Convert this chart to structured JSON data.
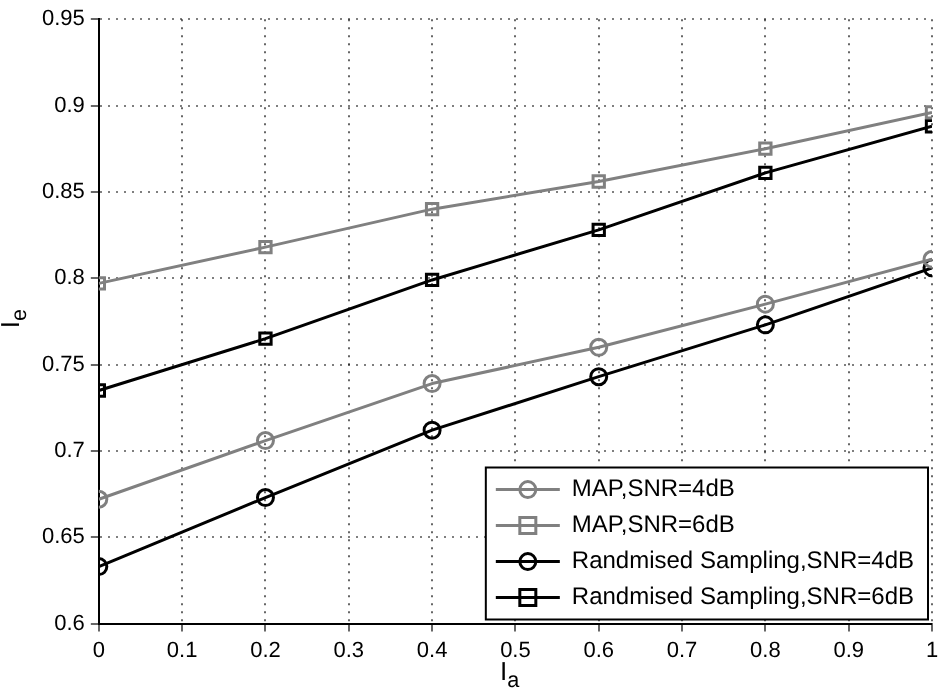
{
  "chart_data": {
    "type": "line",
    "xlabel": "I$_{a}$",
    "ylabel": "I$_{e}$",
    "x": [
      0,
      0.2,
      0.4,
      0.6,
      0.8,
      1
    ],
    "series": [
      {
        "name": "MAP,SNR=4dB",
        "color": "#808080",
        "marker": "circle",
        "values": [
          0.672,
          0.706,
          0.739,
          0.76,
          0.785,
          0.811
        ]
      },
      {
        "name": "MAP,SNR=6dB",
        "color": "#808080",
        "marker": "square",
        "values": [
          0.797,
          0.818,
          0.84,
          0.856,
          0.875,
          0.896
        ]
      },
      {
        "name": "Randmised Sampling,SNR=4dB",
        "color": "#000000",
        "marker": "circle",
        "values": [
          0.633,
          0.673,
          0.712,
          0.743,
          0.773,
          0.806
        ]
      },
      {
        "name": "Randmised Sampling,SNR=6dB",
        "color": "#000000",
        "marker": "square",
        "values": [
          0.735,
          0.765,
          0.799,
          0.828,
          0.861,
          0.888
        ]
      }
    ],
    "xlim": [
      0,
      1
    ],
    "xticks": [
      0,
      0.1,
      0.2,
      0.3,
      0.4,
      0.5,
      0.6,
      0.7,
      0.8,
      0.9,
      1
    ],
    "ylim": [
      0.6,
      0.95
    ],
    "yticks": [
      0.6,
      0.65,
      0.7,
      0.75,
      0.8,
      0.85,
      0.9,
      0.95
    ],
    "grid": true,
    "legend": "bottom right",
    "line_style": "solid"
  }
}
